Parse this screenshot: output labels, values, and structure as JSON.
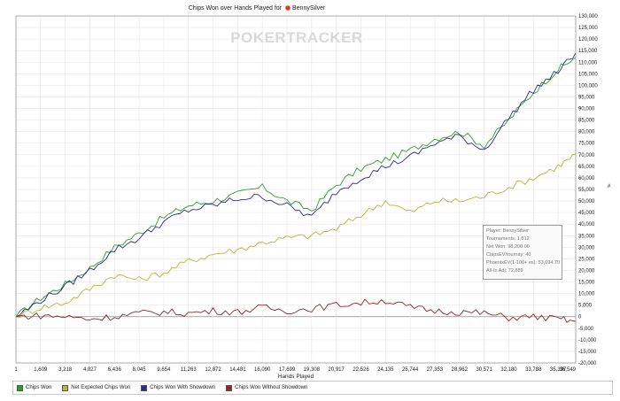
{
  "chart_data": {
    "type": "line",
    "title": "Chips Won over Hands Played for",
    "player_name": "BennySilver",
    "watermark": "POKERTRACKER",
    "xlabel": "Hands Played",
    "ylabel": "",
    "xlim": [
      1,
      36549
    ],
    "ylim": [
      -20000,
      130000
    ],
    "grid": true,
    "legend_placement": "bottom",
    "x_ticks": [
      "1",
      "1,609",
      "3,218",
      "4,827",
      "6,436",
      "8,045",
      "9,654",
      "11,263",
      "12,872",
      "14,481",
      "16,090",
      "17,699",
      "19,308",
      "20,917",
      "22,526",
      "24,135",
      "25,744",
      "27,353",
      "28,962",
      "30,571",
      "32,180",
      "33,788",
      "35,397",
      "36,549"
    ],
    "y_ticks": [
      "-20,000",
      "-15,000",
      "-10,000",
      "-5,000",
      "0",
      "5,000",
      "10,000",
      "15,000",
      "20,000",
      "25,000",
      "30,000",
      "35,000",
      "40,000",
      "45,000",
      "50,000",
      "55,000",
      "60,000",
      "65,000",
      "70,000",
      "75,000",
      "80,000",
      "85,000",
      "90,000",
      "95,000",
      "100,000",
      "105,000",
      "110,000",
      "115,000",
      "120,000",
      "125,000",
      "130,000"
    ],
    "x": [
      1,
      1609,
      3218,
      4827,
      6436,
      8045,
      9654,
      11263,
      12872,
      14481,
      16090,
      17699,
      19308,
      20917,
      22526,
      24135,
      25744,
      27353,
      28962,
      30571,
      32180,
      33788,
      35397,
      36549
    ],
    "series": [
      {
        "name": "Chips Won",
        "color": "#2e9a2e",
        "values": [
          0,
          8000,
          14000,
          21000,
          30000,
          36000,
          43000,
          48000,
          50000,
          53000,
          56000,
          50000,
          46000,
          57000,
          64000,
          68000,
          72000,
          77000,
          80000,
          74000,
          85000,
          97000,
          107000,
          112000
        ]
      },
      {
        "name": "Net Expected Chips Won",
        "color": "#b5b83a",
        "values": [
          0,
          4000,
          6000,
          12000,
          18000,
          16000,
          19000,
          24000,
          27000,
          29000,
          32000,
          34000,
          35000,
          38000,
          44000,
          50000,
          45000,
          50000,
          50000,
          52000,
          56000,
          60000,
          65000,
          70000
        ]
      },
      {
        "name": "Chips Won With Showdown",
        "color": "#2a2a8a",
        "values": [
          0,
          7000,
          13000,
          20000,
          29000,
          34000,
          41000,
          46000,
          48000,
          51000,
          52000,
          48000,
          43000,
          54000,
          60000,
          65000,
          69000,
          75000,
          78000,
          72000,
          86000,
          98000,
          106000,
          114000
        ]
      },
      {
        "name": "Chips Won Without Showdown",
        "color": "#8a2a2a",
        "values": [
          0,
          500,
          0,
          -1000,
          0,
          1500,
          2000,
          1500,
          2500,
          2000,
          4000,
          2500,
          3500,
          5000,
          6000,
          7000,
          4000,
          2500,
          2000,
          1500,
          -500,
          0,
          -1000,
          -2000
        ]
      }
    ]
  },
  "info": {
    "player": "Player: BennySilver",
    "tournaments": "Tournaments: 1,812",
    "net_won": "Net Won: 98,200.00",
    "chipsev": "ChipsEV/tournay: 40",
    "phoenix": "PhoenixEV(1-100+ es): 53,694.70",
    "allin": "All-In Adj: 72,889"
  },
  "right_label": "#"
}
